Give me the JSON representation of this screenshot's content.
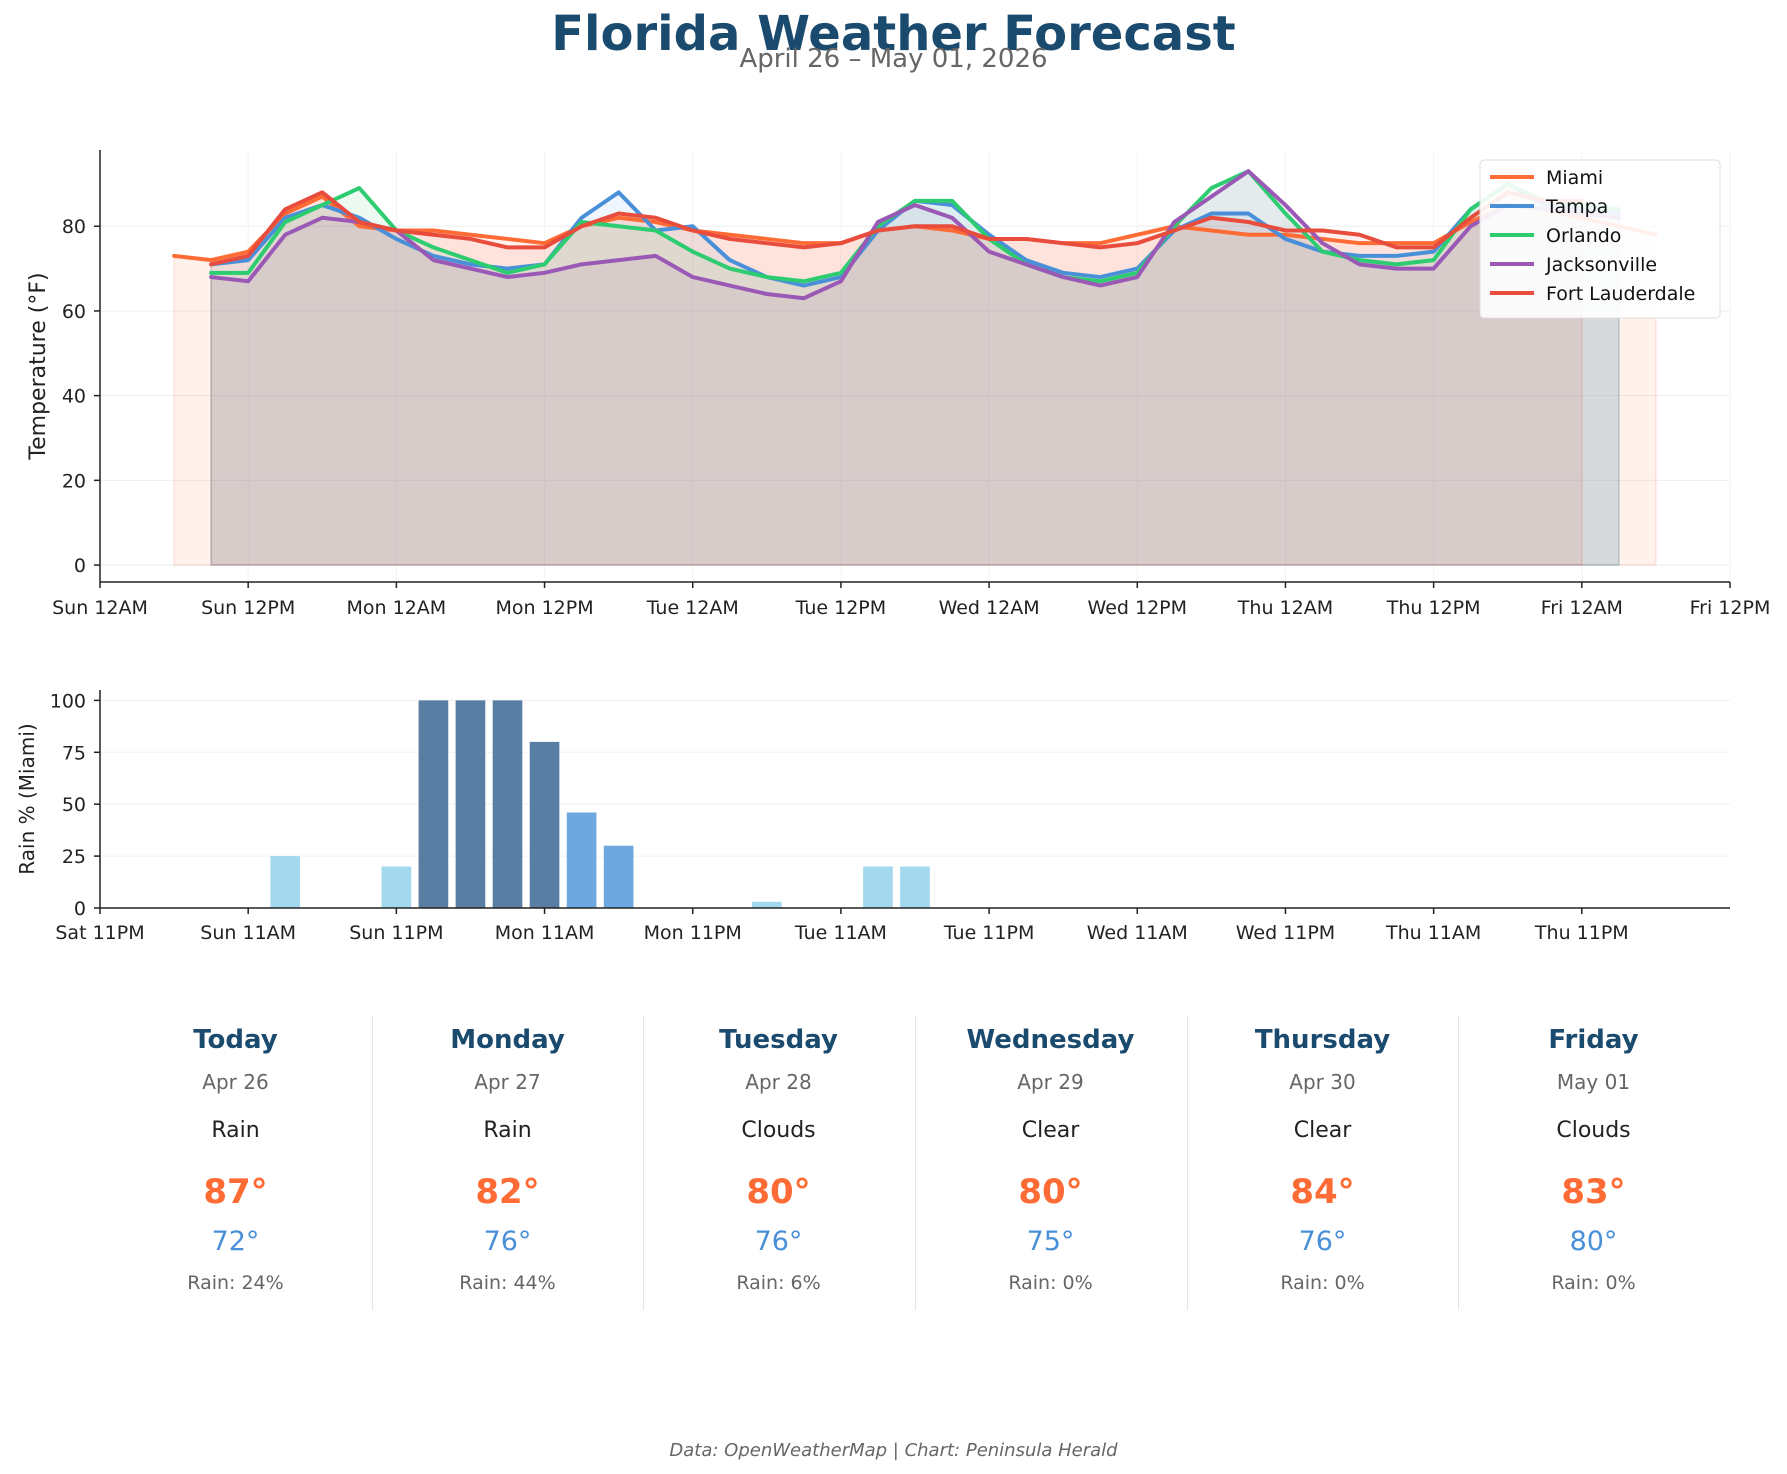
{
  "title": "Florida Weather Forecast",
  "subtitle": "April 26 – May 01, 2026",
  "footer": "Data: OpenWeatherMap | Chart: Peninsula Herald",
  "chart_data": [
    {
      "type": "area",
      "ylabel": "Temperature (°F)",
      "xlabel": "",
      "ylim": [
        -4,
        98
      ],
      "yticks": [
        0,
        20,
        40,
        60,
        80
      ],
      "xlim": [
        0,
        132
      ],
      "xticks": [
        {
          "label": "Sun 12AM",
          "h": 0
        },
        {
          "label": "Sun 12PM",
          "h": 12
        },
        {
          "label": "Mon 12AM",
          "h": 24
        },
        {
          "label": "Mon 12PM",
          "h": 36
        },
        {
          "label": "Tue 12AM",
          "h": 48
        },
        {
          "label": "Tue 12PM",
          "h": 60
        },
        {
          "label": "Wed 12AM",
          "h": 72
        },
        {
          "label": "Wed 12PM",
          "h": 84
        },
        {
          "label": "Thu 12AM",
          "h": 96
        },
        {
          "label": "Thu 12PM",
          "h": 108
        },
        {
          "label": "Fri 12AM",
          "h": 120
        },
        {
          "label": "Fri 12PM",
          "h": 132
        }
      ],
      "grid": true,
      "legend": "top-right",
      "series": [
        {
          "name": "Miami",
          "color": "#ff6b35",
          "x": [
            6,
            9,
            12,
            15,
            18,
            21,
            24,
            27,
            30,
            33,
            36,
            39,
            42,
            45,
            48,
            51,
            54,
            57,
            60,
            63,
            66,
            69,
            72,
            75,
            78,
            81,
            84,
            87,
            90,
            93,
            96,
            99,
            102,
            105,
            108,
            111,
            114,
            117,
            120,
            123,
            126
          ],
          "y": [
            73,
            72,
            74,
            83,
            87,
            80,
            79,
            79,
            78,
            77,
            76,
            80,
            82,
            81,
            79,
            78,
            77,
            76,
            76,
            79,
            80,
            79,
            77,
            77,
            76,
            76,
            78,
            80,
            79,
            78,
            78,
            77,
            76,
            76,
            76,
            81,
            85,
            84,
            82,
            80,
            78
          ]
        },
        {
          "name": "Tampa",
          "color": "#4a90d9",
          "x": [
            9,
            12,
            15,
            18,
            21,
            24,
            27,
            30,
            33,
            36,
            39,
            42,
            45,
            48,
            51,
            54,
            57,
            60,
            63,
            66,
            69,
            72,
            75,
            78,
            81,
            84,
            87,
            90,
            93,
            96,
            99,
            102,
            105,
            108,
            111,
            114,
            117,
            120,
            123
          ],
          "y": [
            71,
            72,
            82,
            85,
            82,
            77,
            73,
            71,
            70,
            71,
            82,
            88,
            79,
            80,
            72,
            68,
            66,
            68,
            79,
            86,
            85,
            78,
            72,
            69,
            68,
            70,
            79,
            83,
            83,
            77,
            74,
            73,
            73,
            74,
            84,
            90,
            85,
            84,
            83
          ]
        },
        {
          "name": "Orlando",
          "color": "#2ecc71",
          "x": [
            9,
            12,
            15,
            18,
            21,
            24,
            27,
            30,
            33,
            36,
            39,
            42,
            45,
            48,
            51,
            54,
            57,
            60,
            63,
            66,
            69,
            72,
            75,
            78,
            81,
            84,
            87,
            90,
            93,
            96,
            99,
            102,
            105,
            108,
            111,
            114,
            117,
            120,
            123
          ],
          "y": [
            69,
            69,
            81,
            85,
            89,
            79,
            75,
            72,
            69,
            71,
            81,
            80,
            79,
            74,
            70,
            68,
            67,
            69,
            80,
            86,
            86,
            77,
            71,
            68,
            67,
            69,
            80,
            89,
            93,
            83,
            74,
            72,
            71,
            72,
            84,
            90,
            86,
            85,
            84
          ]
        },
        {
          "name": "Jacksonville",
          "color": "#9b59b6",
          "x": [
            9,
            12,
            15,
            18,
            21,
            24,
            27,
            30,
            33,
            36,
            39,
            42,
            45,
            48,
            51,
            54,
            57,
            60,
            63,
            66,
            69,
            72,
            75,
            78,
            81,
            84,
            87,
            90,
            93,
            96,
            99,
            102,
            105,
            108,
            111,
            114,
            117,
            120,
            123
          ],
          "y": [
            68,
            67,
            78,
            82,
            81,
            79,
            72,
            70,
            68,
            69,
            71,
            72,
            73,
            68,
            66,
            64,
            63,
            67,
            81,
            85,
            82,
            74,
            71,
            68,
            66,
            68,
            81,
            87,
            93,
            85,
            76,
            71,
            70,
            70,
            80,
            85,
            84,
            83,
            82
          ]
        },
        {
          "name": "Fort Lauderdale",
          "color": "#e74c3c",
          "x": [
            9,
            12,
            15,
            18,
            21,
            24,
            27,
            30,
            33,
            36,
            39,
            42,
            45,
            48,
            51,
            54,
            57,
            60,
            63,
            66,
            69,
            72,
            75,
            78,
            81,
            84,
            87,
            90,
            93,
            96,
            99,
            102,
            105,
            108,
            111,
            114,
            117,
            120
          ],
          "y": [
            71,
            73,
            84,
            88,
            81,
            79,
            78,
            77,
            75,
            75,
            80,
            83,
            82,
            79,
            77,
            76,
            75,
            76,
            79,
            80,
            80,
            77,
            77,
            76,
            75,
            76,
            79,
            82,
            81,
            79,
            79,
            78,
            75,
            75,
            82,
            88,
            86,
            86
          ]
        }
      ]
    },
    {
      "type": "bar",
      "ylabel": "Rain % (Miami)",
      "ylim": [
        0,
        105
      ],
      "yticks": [
        0,
        25,
        50,
        75,
        100
      ],
      "xlim": [
        -1,
        131
      ],
      "xticks": [
        {
          "label": "Sat 11PM",
          "h": -1
        },
        {
          "label": "Sun 11AM",
          "h": 11
        },
        {
          "label": "Sun 11PM",
          "h": 23
        },
        {
          "label": "Mon 11AM",
          "h": 35
        },
        {
          "label": "Mon 11PM",
          "h": 47
        },
        {
          "label": "Tue 11AM",
          "h": 59
        },
        {
          "label": "Tue 11PM",
          "h": 71
        },
        {
          "label": "Wed 11AM",
          "h": 83
        },
        {
          "label": "Wed 11PM",
          "h": 95
        },
        {
          "label": "Thu 11AM",
          "h": 107
        },
        {
          "label": "Thu 11PM",
          "h": 119
        }
      ],
      "bar_colors": {
        "low": "#a3d8ee",
        "medium": "#6fa8e0",
        "high": "#587fa3"
      },
      "x": [
        5,
        8,
        11,
        14,
        17,
        20,
        23,
        26,
        29,
        32,
        35,
        38,
        41,
        44,
        47,
        50,
        53,
        56,
        59,
        62,
        65,
        68,
        71,
        74,
        77,
        80,
        83,
        86,
        89,
        92,
        95,
        98,
        101,
        104,
        107,
        110,
        113,
        116,
        119,
        122,
        125
      ],
      "values": [
        0,
        0,
        0,
        25,
        0,
        0,
        20,
        100,
        100,
        100,
        80,
        46,
        30,
        0,
        0,
        0,
        3,
        0,
        0,
        20,
        20,
        0,
        0,
        0,
        0,
        0,
        0,
        0,
        0,
        0,
        0,
        0,
        0,
        0,
        0,
        0,
        0,
        0,
        0,
        0,
        0
      ]
    }
  ],
  "daily": [
    {
      "day": "Today",
      "date": "Apr 26",
      "condition": "Rain",
      "high": "87°",
      "low": "72°",
      "rain": "Rain: 24%"
    },
    {
      "day": "Monday",
      "date": "Apr 27",
      "condition": "Rain",
      "high": "82°",
      "low": "76°",
      "rain": "Rain: 44%"
    },
    {
      "day": "Tuesday",
      "date": "Apr 28",
      "condition": "Clouds",
      "high": "80°",
      "low": "76°",
      "rain": "Rain: 6%"
    },
    {
      "day": "Wednesday",
      "date": "Apr 29",
      "condition": "Clear",
      "high": "80°",
      "low": "75°",
      "rain": "Rain: 0%"
    },
    {
      "day": "Thursday",
      "date": "Apr 30",
      "condition": "Clear",
      "high": "84°",
      "low": "76°",
      "rain": "Rain: 0%"
    },
    {
      "day": "Friday",
      "date": "May 01",
      "condition": "Clouds",
      "high": "83°",
      "low": "80°",
      "rain": "Rain: 0%"
    }
  ]
}
